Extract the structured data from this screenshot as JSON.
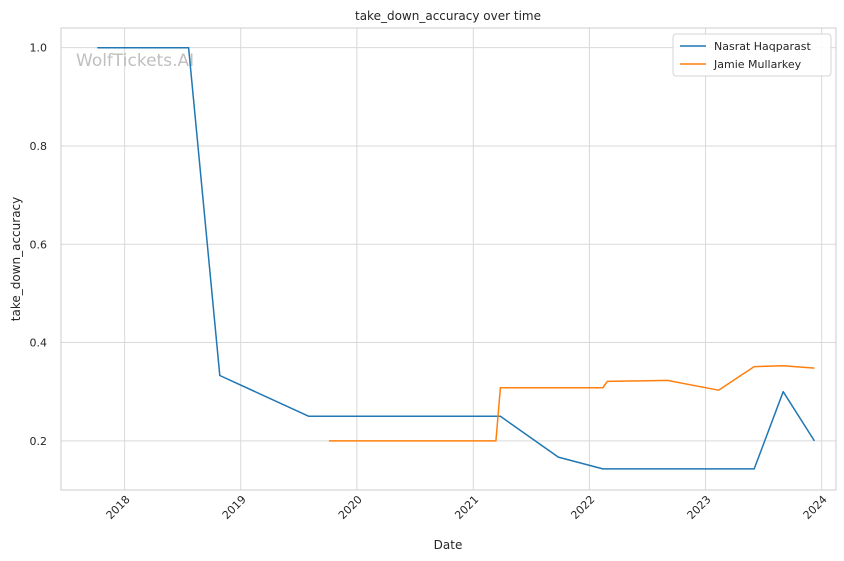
{
  "chart_data": {
    "type": "line",
    "title": "take_down_accuracy over time",
    "xlabel": "Date",
    "ylabel": "take_down_accuracy",
    "x_type": "date",
    "xlim": [
      "2017-06-15",
      "2024-02-15"
    ],
    "ylim": [
      0.1,
      1.04
    ],
    "x_ticks": [
      "2018-01-01",
      "2019-01-01",
      "2020-01-01",
      "2021-01-01",
      "2022-01-01",
      "2023-01-01",
      "2024-01-01"
    ],
    "x_tick_labels": [
      "2018",
      "2019",
      "2020",
      "2021",
      "2022",
      "2023",
      "2024"
    ],
    "y_ticks": [
      0.2,
      0.4,
      0.6,
      0.8,
      1.0
    ],
    "y_tick_labels": [
      "0.2",
      "0.4",
      "0.6",
      "0.8",
      "1.0"
    ],
    "x_tick_rotation": 45,
    "grid": true,
    "legend_position": "top-right",
    "watermark": "WolfTickets.AI",
    "series": [
      {
        "name": "Nasrat Haqparast",
        "color": "#1f77b4",
        "points": [
          {
            "x": "2017-10-07",
            "y": 1.0
          },
          {
            "x": "2018-07-21",
            "y": 1.0
          },
          {
            "x": "2018-10-27",
            "y": 0.333
          },
          {
            "x": "2019-08-03",
            "y": 0.25
          },
          {
            "x": "2021-03-27",
            "y": 0.25
          },
          {
            "x": "2021-09-25",
            "y": 0.167
          },
          {
            "x": "2022-02-12",
            "y": 0.143
          },
          {
            "x": "2023-06-03",
            "y": 0.143
          },
          {
            "x": "2023-09-02",
            "y": 0.3
          },
          {
            "x": "2023-12-09",
            "y": 0.2
          }
        ]
      },
      {
        "name": "Jamie Mullarkey",
        "color": "#ff7f0e",
        "points": [
          {
            "x": "2019-10-05",
            "y": 0.2
          },
          {
            "x": "2021-03-13",
            "y": 0.2
          },
          {
            "x": "2021-03-27",
            "y": 0.308
          },
          {
            "x": "2022-02-12",
            "y": 0.308
          },
          {
            "x": "2022-02-26",
            "y": 0.321
          },
          {
            "x": "2022-09-03",
            "y": 0.323
          },
          {
            "x": "2023-02-11",
            "y": 0.303
          },
          {
            "x": "2023-06-03",
            "y": 0.351
          },
          {
            "x": "2023-09-02",
            "y": 0.353
          },
          {
            "x": "2023-12-09",
            "y": 0.348
          }
        ]
      }
    ]
  }
}
